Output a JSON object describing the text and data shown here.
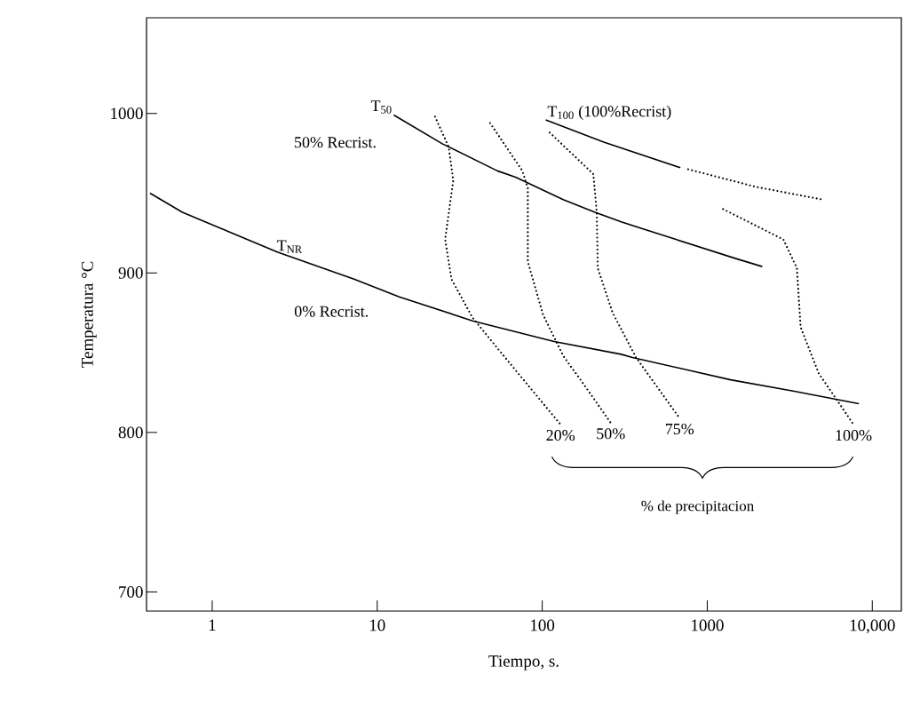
{
  "chart_data": {
    "type": "line",
    "xlabel": "Tiempo, s.",
    "ylabel": "Temperatura °C",
    "log": "x",
    "xlim": [
      0.4,
      15000
    ],
    "ylim": [
      688,
      1060
    ],
    "xticks": [
      1,
      10,
      100,
      1000,
      {
        "value": 10000,
        "label": "10,000"
      }
    ],
    "yticks": [
      700,
      800,
      900,
      1000
    ],
    "grid": false,
    "marker": "none",
    "series": [
      {
        "name": "T$_{NR}$",
        "color": "#000000",
        "line_style": "solid",
        "x": [
          0.42,
          0.66,
          2.5,
          7.3,
          13.6,
          37.8,
          118,
          301,
          352,
          1386,
          3316,
          8285
        ],
        "values": [
          950,
          938,
          913,
          896,
          885,
          870,
          857,
          849,
          847,
          833,
          826,
          818
        ]
      },
      {
        "name": "T$_{50}$",
        "color": "#000000",
        "line_style": "solid",
        "x": [
          12.6,
          24.8,
          53.5,
          69,
          134,
          209,
          301,
          646,
          1491,
          2154
        ],
        "values": [
          999,
          981,
          964,
          960,
          946,
          938,
          932,
          921,
          909,
          904
        ]
      },
      {
        "name": "T$_{100}$ (100%Recrist)",
        "color": "#000000",
        "line_style": "solid",
        "x": [
          105,
          236,
          687
        ],
        "values": [
          996,
          982,
          966
        ]
      },
      {
        "color": "#000000",
        "line_style": "dotted",
        "x": [
          766,
          1959,
          5000
        ],
        "values": [
          965,
          954,
          946
        ]
      },
      {
        "name": "20%",
        "color": "#000000",
        "line_style": "dotted",
        "x": [
          22.4,
          27.1,
          28.9,
          25.8,
          28.2,
          37.8,
          58.4,
          86,
          129
        ],
        "values": [
          998,
          979,
          958,
          921,
          896,
          872,
          848,
          827,
          805
        ]
      },
      {
        "name": "50%",
        "color": "#000000",
        "line_style": "dotted",
        "x": [
          48.3,
          75.8,
          81.8,
          81.8,
          101,
          134,
          179,
          260
        ],
        "values": [
          994,
          964,
          953,
          907,
          874,
          848,
          830,
          806
        ]
      },
      {
        "name": "75%",
        "color": "#000000",
        "line_style": "dotted",
        "x": [
          111,
          204,
          214,
          217,
          267,
          370,
          679
        ],
        "values": [
          988,
          962,
          938,
          903,
          875,
          847,
          809
        ]
      },
      {
        "name": "100%",
        "color": "#000000",
        "line_style": "dotted",
        "x": [
          1247,
          2891,
          3493,
          3680,
          4737,
          6228,
          7689
        ],
        "values": [
          940,
          921,
          903,
          866,
          837,
          819,
          805
        ]
      }
    ],
    "annotations": [
      "50% Recrist.",
      "0% Recrist.",
      "% de precipitacion"
    ]
  }
}
